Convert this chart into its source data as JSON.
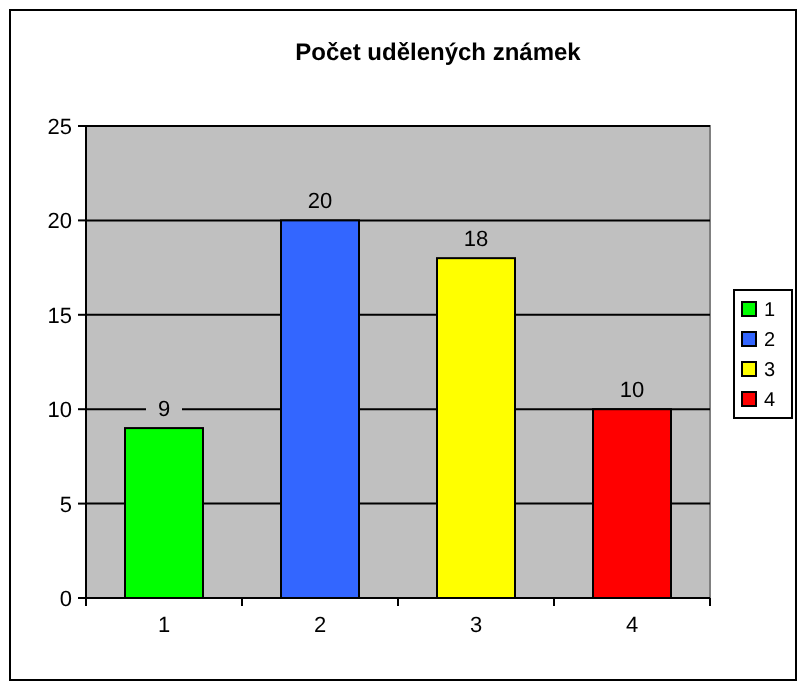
{
  "chart_data": {
    "type": "bar",
    "title": "Počet udělených známek",
    "categories": [
      "1",
      "2",
      "3",
      "4"
    ],
    "stacked": true,
    "series": [
      {
        "name": "1",
        "color": "#00ff00",
        "values": [
          9,
          null,
          null,
          null
        ]
      },
      {
        "name": "2",
        "color": "#3366ff",
        "values": [
          null,
          20,
          null,
          null
        ]
      },
      {
        "name": "3",
        "color": "#ffff00",
        "values": [
          null,
          null,
          18,
          null
        ]
      },
      {
        "name": "4",
        "color": "#ff0000",
        "values": [
          null,
          null,
          null,
          10
        ]
      }
    ],
    "ylim": [
      0,
      25
    ],
    "yticks": [
      0,
      5,
      10,
      15,
      20,
      25
    ],
    "grid": "y",
    "data_labels": true,
    "legend": "right"
  }
}
